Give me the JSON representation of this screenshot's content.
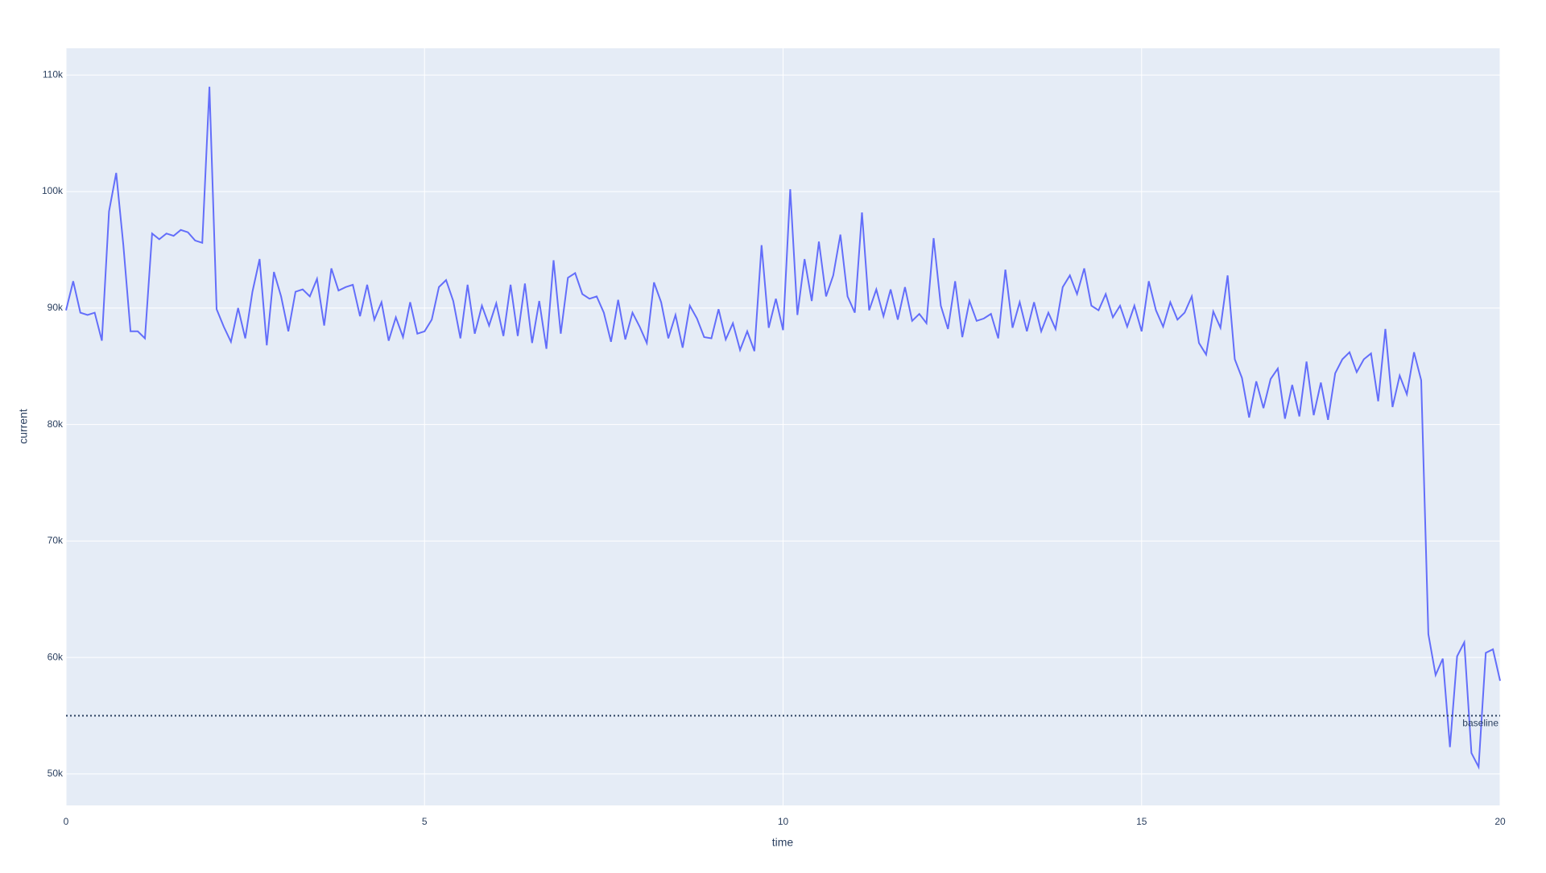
{
  "chart_data": {
    "type": "line",
    "x_label": "time",
    "y_label": "current",
    "x": [
      0,
      0.1,
      0.2,
      0.3,
      0.4,
      0.5,
      0.6,
      0.7,
      0.8,
      0.9,
      1,
      1.1,
      1.2,
      1.3,
      1.4,
      1.5,
      1.6,
      1.7,
      1.8,
      1.9,
      2,
      2.1,
      2.2,
      2.3,
      2.4,
      2.5,
      2.6,
      2.7,
      2.8,
      2.9,
      3,
      3.1,
      3.2,
      3.3,
      3.4,
      3.5,
      3.6,
      3.7,
      3.8,
      3.9,
      4,
      4.1,
      4.2,
      4.3,
      4.4,
      4.5,
      4.6,
      4.7,
      4.8,
      4.9,
      5,
      5.1,
      5.2,
      5.3,
      5.4,
      5.5,
      5.6,
      5.7,
      5.8,
      5.9,
      6,
      6.1,
      6.2,
      6.3,
      6.4,
      6.5,
      6.6,
      6.7,
      6.8,
      6.9,
      7,
      7.1,
      7.2,
      7.3,
      7.4,
      7.5,
      7.6,
      7.7,
      7.8,
      7.9,
      8,
      8.1,
      8.2,
      8.3,
      8.4,
      8.5,
      8.6,
      8.7,
      8.8,
      8.9,
      9,
      9.1,
      9.2,
      9.3,
      9.4,
      9.5,
      9.6,
      9.7,
      9.8,
      9.9,
      10,
      10.1,
      10.2,
      10.3,
      10.4,
      10.5,
      10.6,
      10.7,
      10.8,
      10.9,
      11,
      11.1,
      11.2,
      11.3,
      11.4,
      11.5,
      11.6,
      11.7,
      11.8,
      11.9,
      12,
      12.1,
      12.2,
      12.3,
      12.4,
      12.5,
      12.6,
      12.7,
      12.8,
      12.9,
      13,
      13.1,
      13.2,
      13.3,
      13.4,
      13.5,
      13.6,
      13.7,
      13.8,
      13.9,
      14,
      14.1,
      14.2,
      14.3,
      14.4,
      14.5,
      14.6,
      14.7,
      14.8,
      14.9,
      15,
      15.1,
      15.2,
      15.3,
      15.4,
      15.5,
      15.6,
      15.7,
      15.8,
      15.9,
      16,
      16.1,
      16.2,
      16.3,
      16.4,
      16.5,
      16.6,
      16.7,
      16.8,
      16.9,
      17,
      17.1,
      17.2,
      17.3,
      17.4,
      17.5,
      17.6,
      17.7,
      17.8,
      17.9,
      18,
      18.1,
      18.2,
      18.3,
      18.4,
      18.5,
      18.6,
      18.7,
      18.8,
      18.9,
      19,
      19.1,
      19.2,
      19.3,
      19.4,
      19.5,
      19.6,
      19.7,
      19.8,
      19.9,
      20
    ],
    "series": [
      {
        "name": "current",
        "color": "#636efa",
        "values": [
          89800,
          92300,
          89600,
          89400,
          89600,
          87200,
          98300,
          101600,
          95400,
          88000,
          88000,
          87400,
          96400,
          95900,
          96400,
          96200,
          96700,
          96500,
          95800,
          95600,
          109000,
          89900,
          88400,
          87100,
          90000,
          87400,
          91400,
          94200,
          86800,
          93100,
          91000,
          88000,
          91400,
          91600,
          91000,
          92500,
          88500,
          93400,
          91500,
          91800,
          92000,
          89300,
          92000,
          89000,
          90500,
          87200,
          89200,
          87500,
          90500,
          87800,
          88000,
          89000,
          91800,
          92400,
          90600,
          87400,
          92000,
          87800,
          90200,
          88500,
          90400,
          87600,
          92000,
          87600,
          92100,
          87000,
          90600,
          86500,
          94100,
          87800,
          92600,
          93000,
          91200,
          90800,
          91000,
          89600,
          87100,
          90700,
          87300,
          89600,
          88400,
          87000,
          92200,
          90500,
          87400,
          89400,
          86600,
          90200,
          89100,
          87500,
          87400,
          89900,
          87300,
          88700,
          86400,
          88000,
          86300,
          95400,
          88300,
          90800,
          88100,
          100200,
          89400,
          94200,
          90600,
          95700,
          91000,
          92800,
          96300,
          91000,
          89600,
          98200,
          89800,
          91600,
          89300,
          91600,
          89000,
          91800,
          88900,
          89500,
          88700,
          96000,
          90200,
          88200,
          92300,
          87500,
          90600,
          88900,
          89100,
          89500,
          87400,
          93300,
          88300,
          90500,
          88000,
          90500,
          88000,
          89600,
          88200,
          91800,
          92800,
          91200,
          93400,
          90200,
          89800,
          91200,
          89200,
          90200,
          88400,
          90200,
          88000,
          92300,
          89800,
          88400,
          90500,
          89000,
          89600,
          91000,
          87000,
          86000,
          89700,
          88300,
          92800,
          85600,
          84000,
          80600,
          83700,
          81400,
          83900,
          84800,
          80500,
          83400,
          80700,
          85400,
          80800,
          83600,
          80400,
          84400,
          85600,
          86200,
          84500,
          85600,
          86100,
          82000,
          88200,
          81500,
          84200,
          82600,
          86200,
          83800,
          62000,
          58500,
          59900,
          52300,
          60100,
          61300,
          51800,
          50600,
          60400,
          60700,
          58000
        ]
      }
    ],
    "xlim": [
      0,
      20
    ],
    "xticks": [
      0,
      5,
      10,
      15,
      20
    ],
    "ylim": [
      47300,
      112300
    ],
    "yticks": [
      {
        "value": 50000,
        "label": "50k"
      },
      {
        "value": 60000,
        "label": "60k"
      },
      {
        "value": 70000,
        "label": "70k"
      },
      {
        "value": 80000,
        "label": "80k"
      },
      {
        "value": 90000,
        "label": "90k"
      },
      {
        "value": 100000,
        "label": "100k"
      },
      {
        "value": 110000,
        "label": "110k"
      }
    ],
    "hline": {
      "y": 55000,
      "label": "baseline",
      "color": "#2a3f5f"
    },
    "grid": true
  }
}
